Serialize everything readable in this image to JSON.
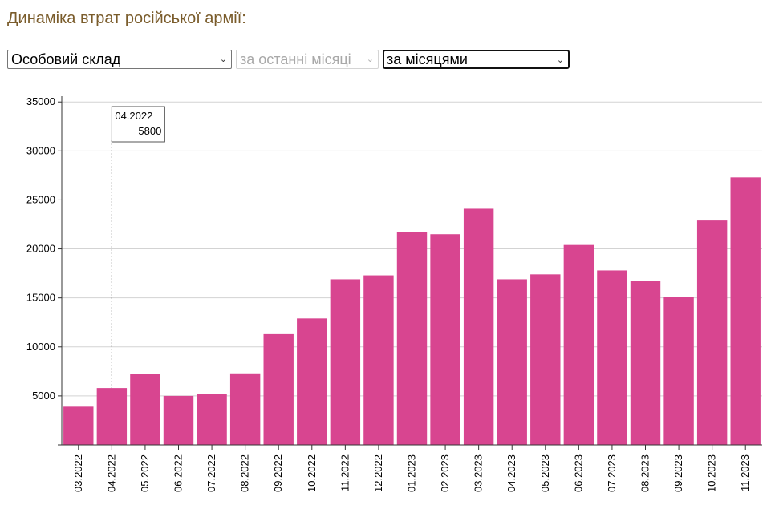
{
  "header": {
    "title": "Динаміка втрат російської армії:"
  },
  "controls": {
    "metric": {
      "value": "Особовий склад"
    },
    "range": {
      "value": "за останні місяці"
    },
    "grouping": {
      "value": "за місяцями"
    }
  },
  "colors": {
    "bar": "#d84590",
    "grid": "#d3d3d3",
    "axis": "#333333",
    "title": "#7a5c2b"
  },
  "tooltip": {
    "period": "04.2022",
    "value": "5800"
  },
  "chart_data": {
    "type": "bar",
    "title": "",
    "xlabel": "",
    "ylabel": "",
    "ylim": [
      0,
      36000
    ],
    "yticks": [
      5000,
      10000,
      15000,
      20000,
      25000,
      30000,
      35000
    ],
    "grid": true,
    "categories": [
      "03.2022",
      "04.2022",
      "05.2022",
      "06.2022",
      "07.2022",
      "08.2022",
      "09.2022",
      "10.2022",
      "11.2022",
      "12.2022",
      "01.2023",
      "02.2023",
      "03.2023",
      "04.2023",
      "05.2023",
      "06.2023",
      "07.2023",
      "08.2023",
      "09.2023",
      "10.2023",
      "11.2023"
    ],
    "values": [
      3900,
      5800,
      7200,
      5000,
      5200,
      7300,
      11300,
      12900,
      16900,
      17300,
      21700,
      21500,
      24100,
      16900,
      17400,
      20400,
      17800,
      16700,
      15100,
      22900,
      27300
    ],
    "highlighted": "04.2022"
  }
}
